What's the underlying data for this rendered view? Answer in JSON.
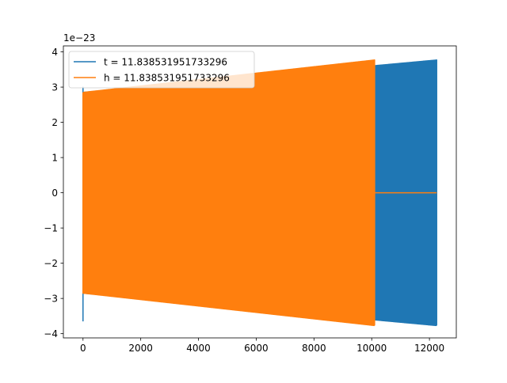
{
  "chart_data": {
    "type": "line",
    "title": "",
    "xlabel": "",
    "ylabel": "",
    "y_offset_label": "1e−23",
    "xlim": [
      -680,
      12930
    ],
    "ylim": [
      -4.12,
      4.17
    ],
    "x_ticks": [
      0,
      2000,
      4000,
      6000,
      8000,
      10000,
      12000
    ],
    "x_tick_labels": [
      "0",
      "2000",
      "4000",
      "6000",
      "8000",
      "10000",
      "12000"
    ],
    "y_ticks": [
      -4,
      -3,
      -2,
      -1,
      0,
      1,
      2,
      3,
      4
    ],
    "y_tick_labels": [
      "−4",
      "−3",
      "−2",
      "−1",
      "0",
      "1",
      "2",
      "3",
      "4"
    ],
    "grid": false,
    "legend_position": "top-left",
    "series": [
      {
        "name": "t = 11.838531951733296",
        "color": "#1f77b4",
        "style": "oscillating",
        "x_start": 0,
        "x_end": 12250,
        "amplitude_start": 2.85,
        "amplitude_end": 3.77,
        "initial_spike": [
          -3.65,
          3.0
        ],
        "tail_value": null
      },
      {
        "name": "h = 11.838531951733296",
        "color": "#ff7f0e",
        "style": "oscillating",
        "x_start": 0,
        "x_end": 10100,
        "amplitude_start": 2.85,
        "amplitude_end": 3.77,
        "initial_spike": null,
        "tail_x_end": 12250,
        "tail_value": 0
      }
    ]
  }
}
